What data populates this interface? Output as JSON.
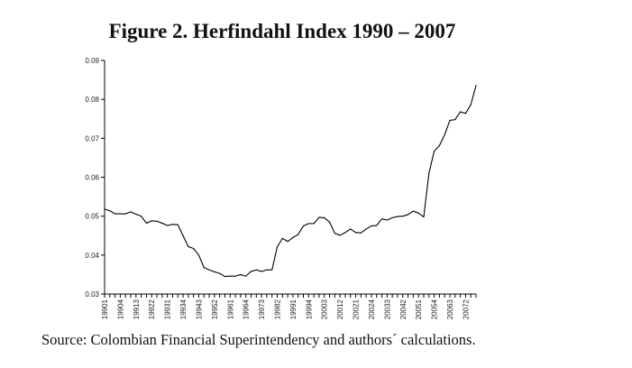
{
  "chart_data": {
    "type": "line",
    "title": "Figure 2. Herfindahl Index 1990 – 2007",
    "xlabel": "",
    "ylabel": "",
    "source": "Source: Colombian Financial Superintendency and authors´ calculations.",
    "ylim": [
      0.03,
      0.09
    ],
    "y_ticks": [
      "0.03",
      "0.04",
      "0.05",
      "0.06",
      "0.07",
      "0.08",
      "0.09"
    ],
    "x_tick_labels": [
      "1990 1",
      "1990 4",
      "1991 3",
      "1992 2",
      "1993 1",
      "1993 4",
      "1994 3",
      "1995 2",
      "1996 1",
      "1996 4",
      "1997 3",
      "1998 2",
      "1999 1",
      "1999 4",
      "2000 3",
      "2001 2",
      "2002 1",
      "2002 4",
      "2003 3",
      "2004 2",
      "2005 1",
      "2005 4",
      "2006 3",
      "2007 2"
    ],
    "grid": false,
    "legend": "none",
    "series_color": "#000000",
    "series": [
      {
        "x": [
          "1990 1",
          "1990 2",
          "1990 3",
          "1990 4",
          "1991 1",
          "1991 2",
          "1991 3",
          "1991 4",
          "1992 1",
          "1992 2",
          "1992 3",
          "1992 4",
          "1993 1",
          "1993 2",
          "1993 3",
          "1993 4",
          "1994 1",
          "1994 2",
          "1994 3",
          "1994 4",
          "1995 1",
          "1995 2",
          "1995 3",
          "1995 4",
          "1996 1",
          "1996 2",
          "1996 3",
          "1996 4",
          "1997 1",
          "1997 2",
          "1997 3",
          "1997 4",
          "1998 1",
          "1998 2",
          "1998 3",
          "1998 4",
          "1999 1",
          "1999 2",
          "1999 3",
          "1999 4",
          "2000 1",
          "2000 2",
          "2000 3",
          "2000 4",
          "2001 1",
          "2001 2",
          "2001 3",
          "2001 4",
          "2002 1",
          "2002 2",
          "2002 3",
          "2002 4",
          "2003 1",
          "2003 2",
          "2003 3",
          "2003 4",
          "2004 1",
          "2004 2",
          "2004 3",
          "2004 4",
          "2005 1",
          "2005 2",
          "2005 3",
          "2005 4",
          "2006 1",
          "2006 2",
          "2006 3",
          "2006 4",
          "2007 1",
          "2007 2",
          "2007 3",
          "2007 4"
        ],
        "values": [
          0.0518,
          0.0514,
          0.0506,
          0.0506,
          0.0506,
          0.0511,
          0.0505,
          0.05,
          0.0482,
          0.0488,
          0.0487,
          0.0482,
          0.0476,
          0.0479,
          0.0478,
          0.045,
          0.0422,
          0.0417,
          0.04,
          0.0368,
          0.0362,
          0.0357,
          0.0353,
          0.0345,
          0.0346,
          0.0346,
          0.035,
          0.0346,
          0.0358,
          0.0362,
          0.0358,
          0.0362,
          0.0362,
          0.0421,
          0.0443,
          0.0435,
          0.0445,
          0.0453,
          0.0475,
          0.0481,
          0.0481,
          0.0497,
          0.0496,
          0.0485,
          0.0456,
          0.0451,
          0.0458,
          0.0467,
          0.0458,
          0.0457,
          0.0467,
          0.0475,
          0.0476,
          0.0493,
          0.049,
          0.0496,
          0.0499,
          0.05,
          0.0504,
          0.0513,
          0.0508,
          0.0498,
          0.061,
          0.0667,
          0.0681,
          0.0709,
          0.0746,
          0.0748,
          0.0768,
          0.0764,
          0.0786,
          0.0836
        ]
      }
    ]
  }
}
